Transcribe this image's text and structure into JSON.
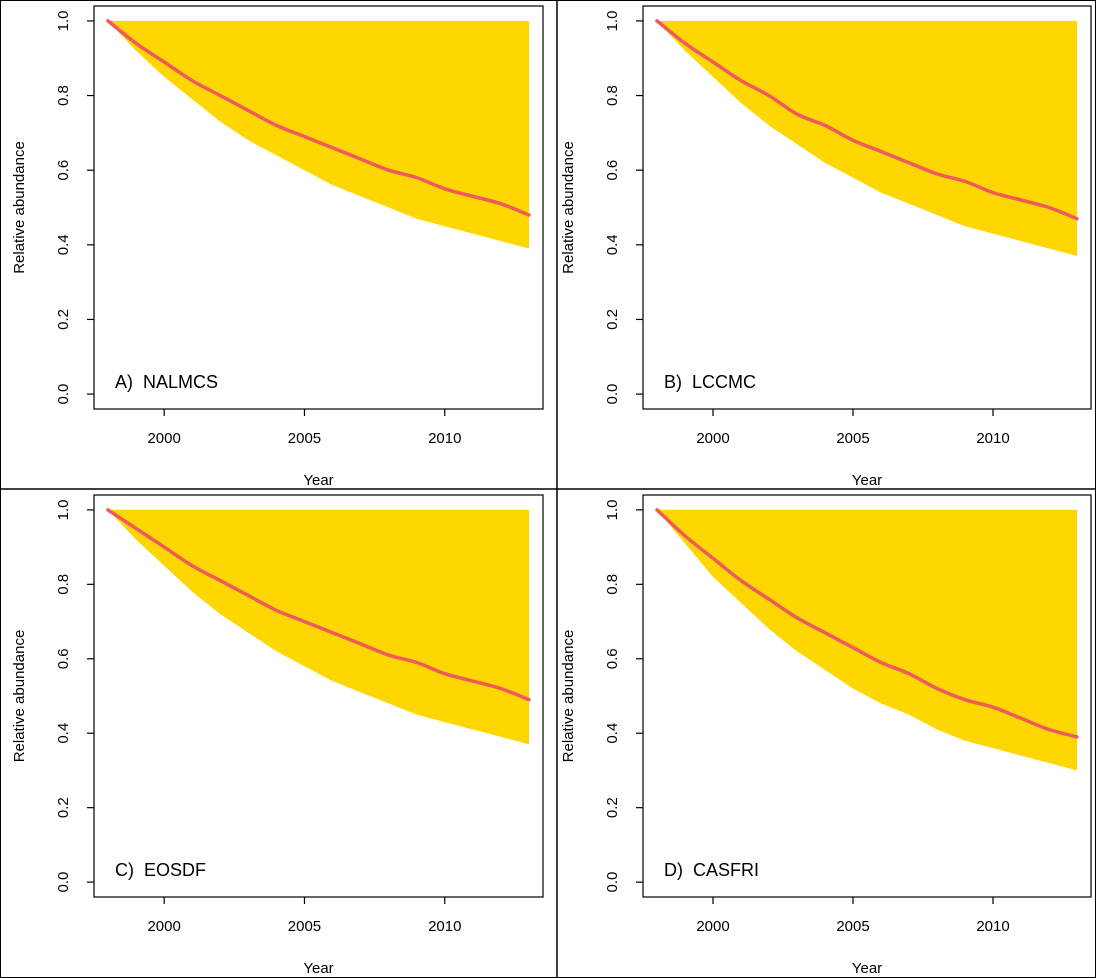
{
  "colors": {
    "band_fill": "#FFD700",
    "line": "#F05A5A",
    "axis": "#000000",
    "panel_border": "#000000",
    "background": "#FFFFFF"
  },
  "chart_data": [
    {
      "type": "area",
      "panel_label": "A)  NALMCS",
      "xlabel": "Year",
      "ylabel": "Relative abundance",
      "xlim": [
        1997.5,
        2013.5
      ],
      "ylim": [
        0,
        1
      ],
      "x_ticks": [
        2000,
        2005,
        2010
      ],
      "y_ticks": [
        0.0,
        0.2,
        0.4,
        0.6,
        0.8,
        1.0
      ],
      "x_tick_labels": [
        "2000",
        "2005",
        "2010"
      ],
      "y_tick_labels": [
        "0.0",
        "0.2",
        "0.4",
        "0.6",
        "0.8",
        "1.0"
      ],
      "grid": false,
      "x": [
        1998,
        1999,
        2000,
        2001,
        2002,
        2003,
        2004,
        2005,
        2006,
        2007,
        2008,
        2009,
        2010,
        2011,
        2012,
        2013
      ],
      "series": [
        {
          "role": "upper",
          "values": [
            1,
            1,
            1,
            1,
            1,
            1,
            1,
            1,
            1,
            1,
            1,
            1,
            1,
            1,
            1,
            1
          ]
        },
        {
          "role": "lower",
          "values": [
            1.0,
            0.92,
            0.85,
            0.79,
            0.73,
            0.68,
            0.64,
            0.6,
            0.56,
            0.53,
            0.5,
            0.47,
            0.45,
            0.43,
            0.41,
            0.39
          ]
        },
        {
          "role": "line",
          "values": [
            1.0,
            0.94,
            0.89,
            0.84,
            0.8,
            0.76,
            0.72,
            0.69,
            0.66,
            0.63,
            0.6,
            0.58,
            0.55,
            0.53,
            0.51,
            0.48
          ]
        }
      ]
    },
    {
      "type": "area",
      "panel_label": "B)  LCCMC",
      "xlabel": "Year",
      "ylabel": "Relative abundance",
      "xlim": [
        1997.5,
        2013.5
      ],
      "ylim": [
        0,
        1
      ],
      "x_ticks": [
        2000,
        2005,
        2010
      ],
      "y_ticks": [
        0.0,
        0.2,
        0.4,
        0.6,
        0.8,
        1.0
      ],
      "x_tick_labels": [
        "2000",
        "2005",
        "2010"
      ],
      "y_tick_labels": [
        "0.0",
        "0.2",
        "0.4",
        "0.6",
        "0.8",
        "1.0"
      ],
      "grid": false,
      "x": [
        1998,
        1999,
        2000,
        2001,
        2002,
        2003,
        2004,
        2005,
        2006,
        2007,
        2008,
        2009,
        2010,
        2011,
        2012,
        2013
      ],
      "series": [
        {
          "role": "upper",
          "values": [
            1,
            1,
            1,
            1,
            1,
            1,
            1,
            1,
            1,
            1,
            1,
            1,
            1,
            1,
            1,
            1
          ]
        },
        {
          "role": "lower",
          "values": [
            1.0,
            0.92,
            0.85,
            0.78,
            0.72,
            0.67,
            0.62,
            0.58,
            0.54,
            0.51,
            0.48,
            0.45,
            0.43,
            0.41,
            0.39,
            0.37
          ]
        },
        {
          "role": "line",
          "values": [
            1.0,
            0.94,
            0.89,
            0.84,
            0.8,
            0.75,
            0.72,
            0.68,
            0.65,
            0.62,
            0.59,
            0.57,
            0.54,
            0.52,
            0.5,
            0.47
          ]
        }
      ]
    },
    {
      "type": "area",
      "panel_label": "C)  EOSDF",
      "xlabel": "Year",
      "ylabel": "Relative abundance",
      "xlim": [
        1997.5,
        2013.5
      ],
      "ylim": [
        0,
        1
      ],
      "x_ticks": [
        2000,
        2005,
        2010
      ],
      "y_ticks": [
        0.0,
        0.2,
        0.4,
        0.6,
        0.8,
        1.0
      ],
      "x_tick_labels": [
        "2000",
        "2005",
        "2010"
      ],
      "y_tick_labels": [
        "0.0",
        "0.2",
        "0.4",
        "0.6",
        "0.8",
        "1.0"
      ],
      "grid": false,
      "x": [
        1998,
        1999,
        2000,
        2001,
        2002,
        2003,
        2004,
        2005,
        2006,
        2007,
        2008,
        2009,
        2010,
        2011,
        2012,
        2013
      ],
      "series": [
        {
          "role": "upper",
          "values": [
            1,
            1,
            1,
            1,
            1,
            1,
            1,
            1,
            1,
            1,
            1,
            1,
            1,
            1,
            1,
            1
          ]
        },
        {
          "role": "lower",
          "values": [
            1.0,
            0.92,
            0.85,
            0.78,
            0.72,
            0.67,
            0.62,
            0.58,
            0.54,
            0.51,
            0.48,
            0.45,
            0.43,
            0.41,
            0.39,
            0.37
          ]
        },
        {
          "role": "line",
          "values": [
            1.0,
            0.95,
            0.9,
            0.85,
            0.81,
            0.77,
            0.73,
            0.7,
            0.67,
            0.64,
            0.61,
            0.59,
            0.56,
            0.54,
            0.52,
            0.49
          ]
        }
      ]
    },
    {
      "type": "area",
      "panel_label": "D)  CASFRI",
      "xlabel": "Year",
      "ylabel": "Relative abundance",
      "xlim": [
        1997.5,
        2013.5
      ],
      "ylim": [
        0,
        1
      ],
      "x_ticks": [
        2000,
        2005,
        2010
      ],
      "y_ticks": [
        0.0,
        0.2,
        0.4,
        0.6,
        0.8,
        1.0
      ],
      "x_tick_labels": [
        "2000",
        "2005",
        "2010"
      ],
      "y_tick_labels": [
        "0.0",
        "0.2",
        "0.4",
        "0.6",
        "0.8",
        "1.0"
      ],
      "grid": false,
      "x": [
        1998,
        1999,
        2000,
        2001,
        2002,
        2003,
        2004,
        2005,
        2006,
        2007,
        2008,
        2009,
        2010,
        2011,
        2012,
        2013
      ],
      "series": [
        {
          "role": "upper",
          "values": [
            1,
            1,
            1,
            1,
            1,
            1,
            1,
            1,
            1,
            1,
            1,
            1,
            1,
            1,
            1,
            1
          ]
        },
        {
          "role": "lower",
          "values": [
            1.0,
            0.91,
            0.82,
            0.75,
            0.68,
            0.62,
            0.57,
            0.52,
            0.48,
            0.45,
            0.41,
            0.38,
            0.36,
            0.34,
            0.32,
            0.3
          ]
        },
        {
          "role": "line",
          "values": [
            1.0,
            0.93,
            0.87,
            0.81,
            0.76,
            0.71,
            0.67,
            0.63,
            0.59,
            0.56,
            0.52,
            0.49,
            0.47,
            0.44,
            0.41,
            0.39
          ]
        }
      ]
    }
  ]
}
